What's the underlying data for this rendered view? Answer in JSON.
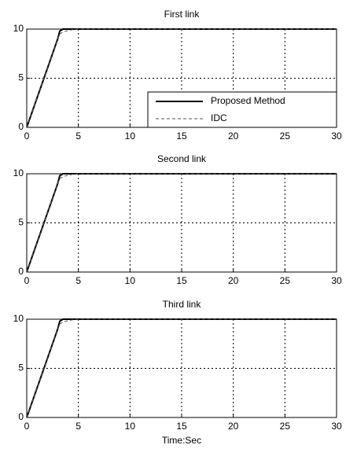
{
  "chart_data": [
    {
      "type": "line",
      "title": "First link",
      "x": [
        0,
        0.5,
        1,
        1.5,
        2,
        2.5,
        3,
        3.2,
        3.5,
        4,
        4.5,
        5,
        10,
        15,
        20,
        25,
        30
      ],
      "series": [
        {
          "name": "Proposed Method",
          "color": "#000000",
          "linestyle": "solid",
          "values": [
            0,
            1.5,
            3,
            4.5,
            6,
            7.5,
            9,
            9.8,
            10,
            10,
            10,
            10,
            10,
            10,
            10,
            10,
            10
          ]
        },
        {
          "name": "IDC",
          "color": "#555555",
          "linestyle": "dashed",
          "values": [
            0,
            1.5,
            3,
            4.5,
            6,
            7.5,
            9,
            9.5,
            9.7,
            9.85,
            9.95,
            10,
            10,
            10,
            10,
            10,
            10
          ]
        }
      ],
      "xlim": [
        0,
        30
      ],
      "xticks": [
        0,
        5,
        10,
        15,
        20,
        25,
        30
      ],
      "ylim": [
        0,
        10
      ],
      "yticks": [
        0,
        5,
        10
      ],
      "grid": true,
      "legend": "lower right"
    },
    {
      "type": "line",
      "title": "Second link",
      "x": [
        0,
        0.5,
        1,
        1.5,
        2,
        2.5,
        3,
        3.2,
        3.5,
        4,
        4.5,
        5,
        10,
        15,
        20,
        25,
        30
      ],
      "series": [
        {
          "name": "Proposed Method",
          "color": "#000000",
          "linestyle": "solid",
          "values": [
            0,
            1.5,
            3,
            4.5,
            6,
            7.5,
            9,
            9.8,
            10,
            10,
            10,
            10,
            10,
            10,
            10,
            10,
            10
          ]
        },
        {
          "name": "IDC",
          "color": "#555555",
          "linestyle": "dashed",
          "values": [
            0,
            1.5,
            3,
            4.5,
            6,
            7.5,
            9,
            9.5,
            9.7,
            9.85,
            9.95,
            10,
            10,
            10,
            10,
            10,
            10
          ]
        }
      ],
      "xlim": [
        0,
        30
      ],
      "xticks": [
        0,
        5,
        10,
        15,
        20,
        25,
        30
      ],
      "ylim": [
        0,
        10
      ],
      "yticks": [
        0,
        5,
        10
      ],
      "grid": true
    },
    {
      "type": "line",
      "title": "Third link",
      "xlabel": "Time:Sec",
      "x": [
        0,
        0.5,
        1,
        1.5,
        2,
        2.5,
        3,
        3.2,
        3.5,
        4,
        4.5,
        5,
        10,
        15,
        20,
        25,
        30
      ],
      "series": [
        {
          "name": "Proposed Method",
          "color": "#000000",
          "linestyle": "solid",
          "values": [
            0,
            1.5,
            3,
            4.5,
            6,
            7.5,
            9,
            9.8,
            10,
            10,
            10,
            10,
            10,
            10,
            10,
            10,
            10
          ]
        },
        {
          "name": "IDC",
          "color": "#555555",
          "linestyle": "dashed",
          "values": [
            0,
            1.5,
            3,
            4.5,
            6,
            7.5,
            9,
            9.5,
            9.7,
            9.85,
            9.95,
            10,
            10,
            10,
            10,
            10,
            10
          ]
        }
      ],
      "xlim": [
        0,
        30
      ],
      "xticks": [
        0,
        5,
        10,
        15,
        20,
        25,
        30
      ],
      "ylim": [
        0,
        10
      ],
      "yticks": [
        0,
        5,
        10
      ],
      "grid": true
    }
  ]
}
